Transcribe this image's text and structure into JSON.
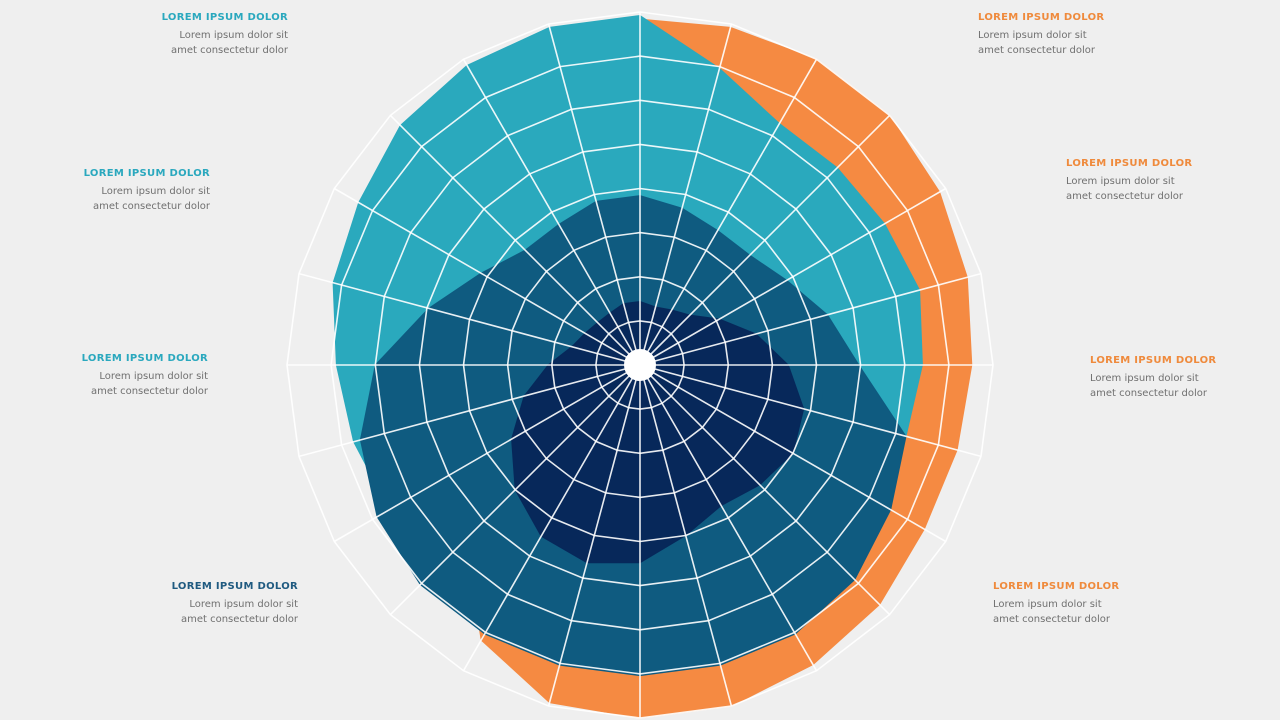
{
  "chart_data": {
    "type": "radar",
    "title": "",
    "spokes": 24,
    "rings": 8,
    "rmax": 1.0,
    "grid": true,
    "series": [
      {
        "color": "#f58a42",
        "r": [
          0.98,
          0.99,
          1.0,
          1.0,
          0.98,
          0.96,
          0.94,
          0.93,
          0.93,
          0.96,
          0.98,
          1.0,
          1.0,
          0.99,
          0.9,
          0.7,
          0.62,
          0.62,
          0.64,
          0.66,
          0.68,
          0.72,
          0.8,
          0.94
        ]
      },
      {
        "color": "#2aa9bd",
        "r": [
          0.99,
          0.87,
          0.79,
          0.79,
          0.8,
          0.82,
          0.8,
          0.78,
          0.72,
          0.6,
          0.52,
          0.52,
          0.55,
          0.62,
          0.68,
          0.78,
          0.82,
          0.84,
          0.86,
          0.9,
          0.92,
          0.96,
          0.98,
          0.99
        ]
      },
      {
        "color": "#0f5b80",
        "r": [
          0.48,
          0.46,
          0.44,
          0.44,
          0.48,
          0.55,
          0.62,
          0.78,
          0.82,
          0.86,
          0.88,
          0.88,
          0.88,
          0.88,
          0.88,
          0.88,
          0.86,
          0.82,
          0.75,
          0.62,
          0.52,
          0.46,
          0.46,
          0.48
        ]
      },
      {
        "color": "#07285a",
        "r": [
          0.18,
          0.17,
          0.18,
          0.2,
          0.26,
          0.34,
          0.42,
          0.48,
          0.5,
          0.48,
          0.46,
          0.5,
          0.56,
          0.58,
          0.56,
          0.5,
          0.42,
          0.34,
          0.26,
          0.2,
          0.18,
          0.17,
          0.17,
          0.18
        ]
      }
    ]
  },
  "callouts": [
    {
      "color": "#2aa8be",
      "side": "left",
      "title": "LOREM IPSUM DOLOR",
      "lines": [
        "Lorem ipsum dolor sit",
        "amet consectetur dolor"
      ]
    },
    {
      "color": "#2aa8be",
      "side": "left",
      "title": "LOREM IPSUM DOLOR",
      "lines": [
        "Lorem ipsum dolor sit",
        "amet consectetur dolor"
      ]
    },
    {
      "color": "#2aa8be",
      "side": "left",
      "title": "LOREM IPSUM DOLOR",
      "lines": [
        "Lorem ipsum dolor sit",
        "amet consectetur dolor"
      ]
    },
    {
      "color": "#1f5a80",
      "side": "left",
      "title": "LOREM IPSUM DOLOR",
      "lines": [
        "Lorem ipsum dolor sit",
        "amet consectetur dolor"
      ]
    },
    {
      "color": "#ef8a3c",
      "side": "right",
      "title": "LOREM IPSUM DOLOR",
      "lines": [
        "Lorem ipsum dolor sit",
        "amet consectetur dolor"
      ]
    },
    {
      "color": "#ef8a3c",
      "side": "right",
      "title": "LOREM IPSUM DOLOR",
      "lines": [
        "Lorem ipsum dolor sit",
        "amet consectetur dolor"
      ]
    },
    {
      "color": "#ef8a3c",
      "side": "right",
      "title": "LOREM IPSUM DOLOR",
      "lines": [
        "Lorem ipsum dolor sit",
        "amet consectetur dolor"
      ]
    },
    {
      "color": "#ef8a3c",
      "side": "right",
      "title": "LOREM IPSUM DOLOR",
      "lines": [
        "Lorem ipsum dolor sit",
        "amet consectetur dolor"
      ]
    }
  ]
}
